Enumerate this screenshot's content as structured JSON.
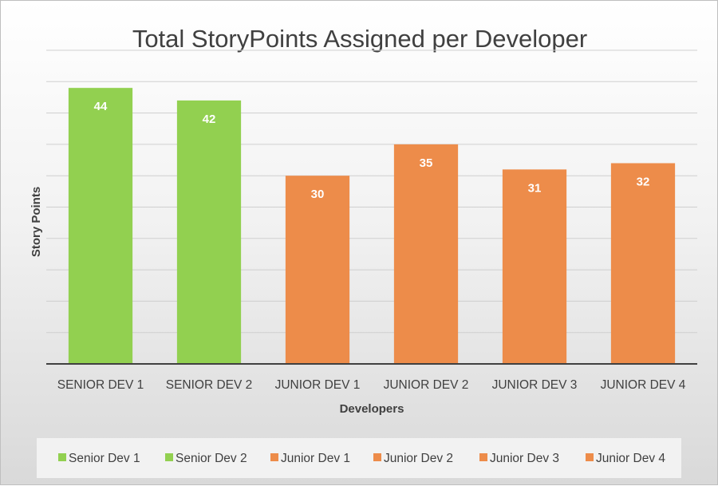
{
  "chart_data": {
    "type": "bar",
    "title": "Total StoryPoints Assigned per Developer",
    "xlabel": "Developers",
    "ylabel": "Story Points",
    "categories": [
      "SENIOR DEV 1",
      "SENIOR DEV 2",
      "JUNIOR DEV 1",
      "JUNIOR DEV 2",
      "JUNIOR DEV 3",
      "JUNIOR DEV 4"
    ],
    "values": [
      44,
      42,
      30,
      35,
      31,
      32
    ],
    "bar_colors": [
      "#92d050",
      "#92d050",
      "#ed8c4a",
      "#ed8c4a",
      "#ed8c4a",
      "#ed8c4a"
    ],
    "ylim": [
      0,
      50
    ],
    "ytick_step": 5,
    "grid": true,
    "y_tick_labels_shown": false,
    "data_labels": true,
    "legend": {
      "placement": "bottom",
      "entries": [
        {
          "label": "Senior Dev 1",
          "color": "#92d050"
        },
        {
          "label": "Senior Dev 2",
          "color": "#92d050"
        },
        {
          "label": "Junior Dev 1",
          "color": "#ed8c4a"
        },
        {
          "label": "Junior Dev 2",
          "color": "#ed8c4a"
        },
        {
          "label": "Junior Dev 3",
          "color": "#ed8c4a"
        },
        {
          "label": "Junior Dev 4",
          "color": "#ed8c4a"
        }
      ]
    }
  }
}
